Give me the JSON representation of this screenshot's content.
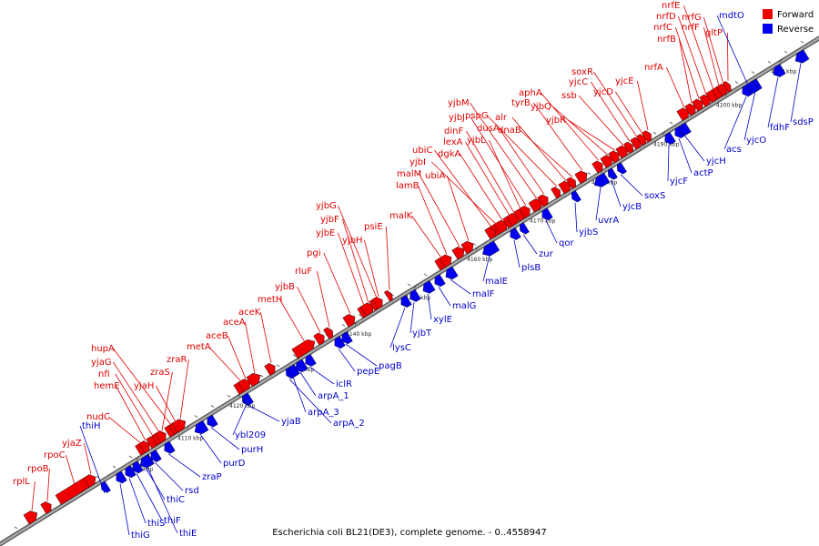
{
  "caption": "Escherichia coli BL21(DE3), complete genome. - 0..4558947",
  "legend": [
    {
      "label": "Forward",
      "color": "#ee0000"
    },
    {
      "label": "Reverse",
      "color": "#0000ee"
    }
  ],
  "colors": {
    "forward": "#ee0000",
    "reverse": "#0000ee",
    "backbone": "#808080",
    "forward_label": "#e00000",
    "reverse_label": "#0000c8"
  },
  "range_kbp": [
    4090,
    4216
  ],
  "ticks": [
    {
      "kbp": 4100,
      "label": "4100 kbp"
    },
    {
      "kbp": 4110,
      "label": "4110 kbp"
    },
    {
      "kbp": 4120,
      "label": "4120 kbp"
    },
    {
      "kbp": 4130,
      "label": "4130 kbp"
    },
    {
      "kbp": 4140,
      "label": "4140 kbp"
    },
    {
      "kbp": 4150,
      "label": "4150 kbp"
    },
    {
      "kbp": 4160,
      "label": "4160 kbp"
    },
    {
      "kbp": 4170,
      "label": "4170 kbp"
    },
    {
      "kbp": 4180,
      "label": "4180 kbp"
    },
    {
      "kbp": 4190,
      "label": "4190 kbp"
    },
    {
      "kbp": 4200,
      "label": "4200 kbp"
    },
    {
      "kbp": 4210,
      "label": "4210 kbp"
    }
  ],
  "forward_genes": [
    "rplL",
    "rpoB",
    "rpoC",
    "yjaZ",
    "nudC",
    "hemE",
    "nfi",
    "yjaG",
    "hupA",
    "yjaH",
    "zraS",
    "zraR",
    "metA",
    "aceB",
    "aceA",
    "aceK",
    "metH",
    "rluF",
    "yjbB",
    "pgi",
    "yjbE",
    "yjbF",
    "yjbG",
    "yjbH",
    "psiE",
    "malK",
    "lamB",
    "malM",
    "ubiA",
    "yjbI",
    "ubiC",
    "dgkA",
    "lexA",
    "dinF",
    "yjbL",
    "yjbJ",
    "yjbM",
    "dusA",
    "pspG",
    "alr",
    "dnaB",
    "tyrB",
    "aphA",
    "yjbQ",
    "yjbR",
    "ssb",
    "yjcC",
    "soxR",
    "yjcD",
    "yjcE",
    "nrfA",
    "nrfB",
    "nrfC",
    "nrfD",
    "nrfE",
    "nrfF",
    "nrfG",
    "gltP"
  ],
  "reverse_genes": [
    "thiH",
    "thiG",
    "thiS",
    "thiF",
    "thiE",
    "thiC",
    "rsd",
    "zraP",
    "purD",
    "purH",
    "ybl209",
    "yjaB",
    "arpA_2",
    "arpA_3",
    "arpA_1",
    "iclR",
    "pepE",
    "pagB",
    "lysC",
    "yjbT",
    "xylE",
    "malG",
    "malF",
    "malE",
    "plsB",
    "zur",
    "qor",
    "yjbS",
    "uvrA",
    "yjcB",
    "soxS",
    "yjcF",
    "actP",
    "yjcH",
    "acs",
    "yjcO",
    "fdhF",
    "sdsP",
    "mdtO"
  ]
}
